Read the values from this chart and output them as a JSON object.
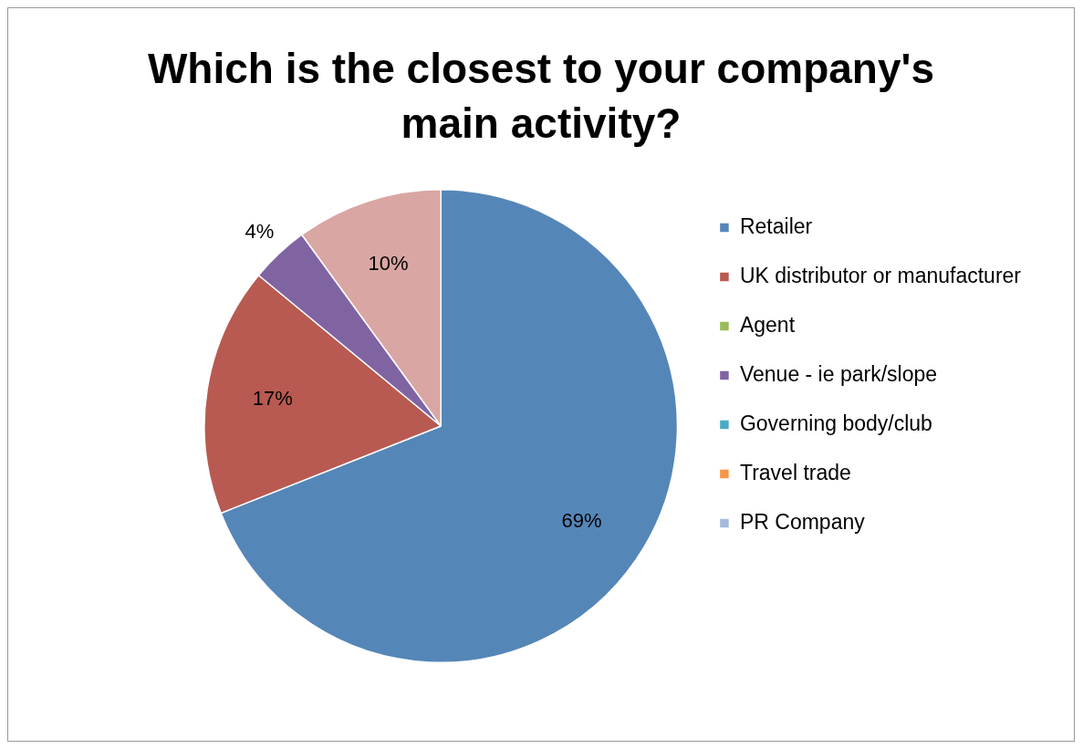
{
  "chart_data": {
    "type": "pie",
    "title": "Which is the closest to your company's main activity?",
    "categories": [
      "Retailer",
      "UK distributor or manufacturer",
      "Agent",
      "Venue - ie park/slope",
      "Governing body/club",
      "Travel trade",
      "PR Company",
      null
    ],
    "values": [
      69,
      17,
      0,
      4,
      0,
      0,
      0,
      10
    ],
    "colors": [
      "#5586b8",
      "#b85a51",
      "#9bbb59",
      "#8064a2",
      "#4bacc6",
      "#f79646",
      "#a5b9d9",
      "#d9a6a3"
    ],
    "value_labels": [
      "69%",
      "17%",
      null,
      "4%",
      null,
      null,
      null,
      "10%"
    ],
    "legend": "right"
  }
}
